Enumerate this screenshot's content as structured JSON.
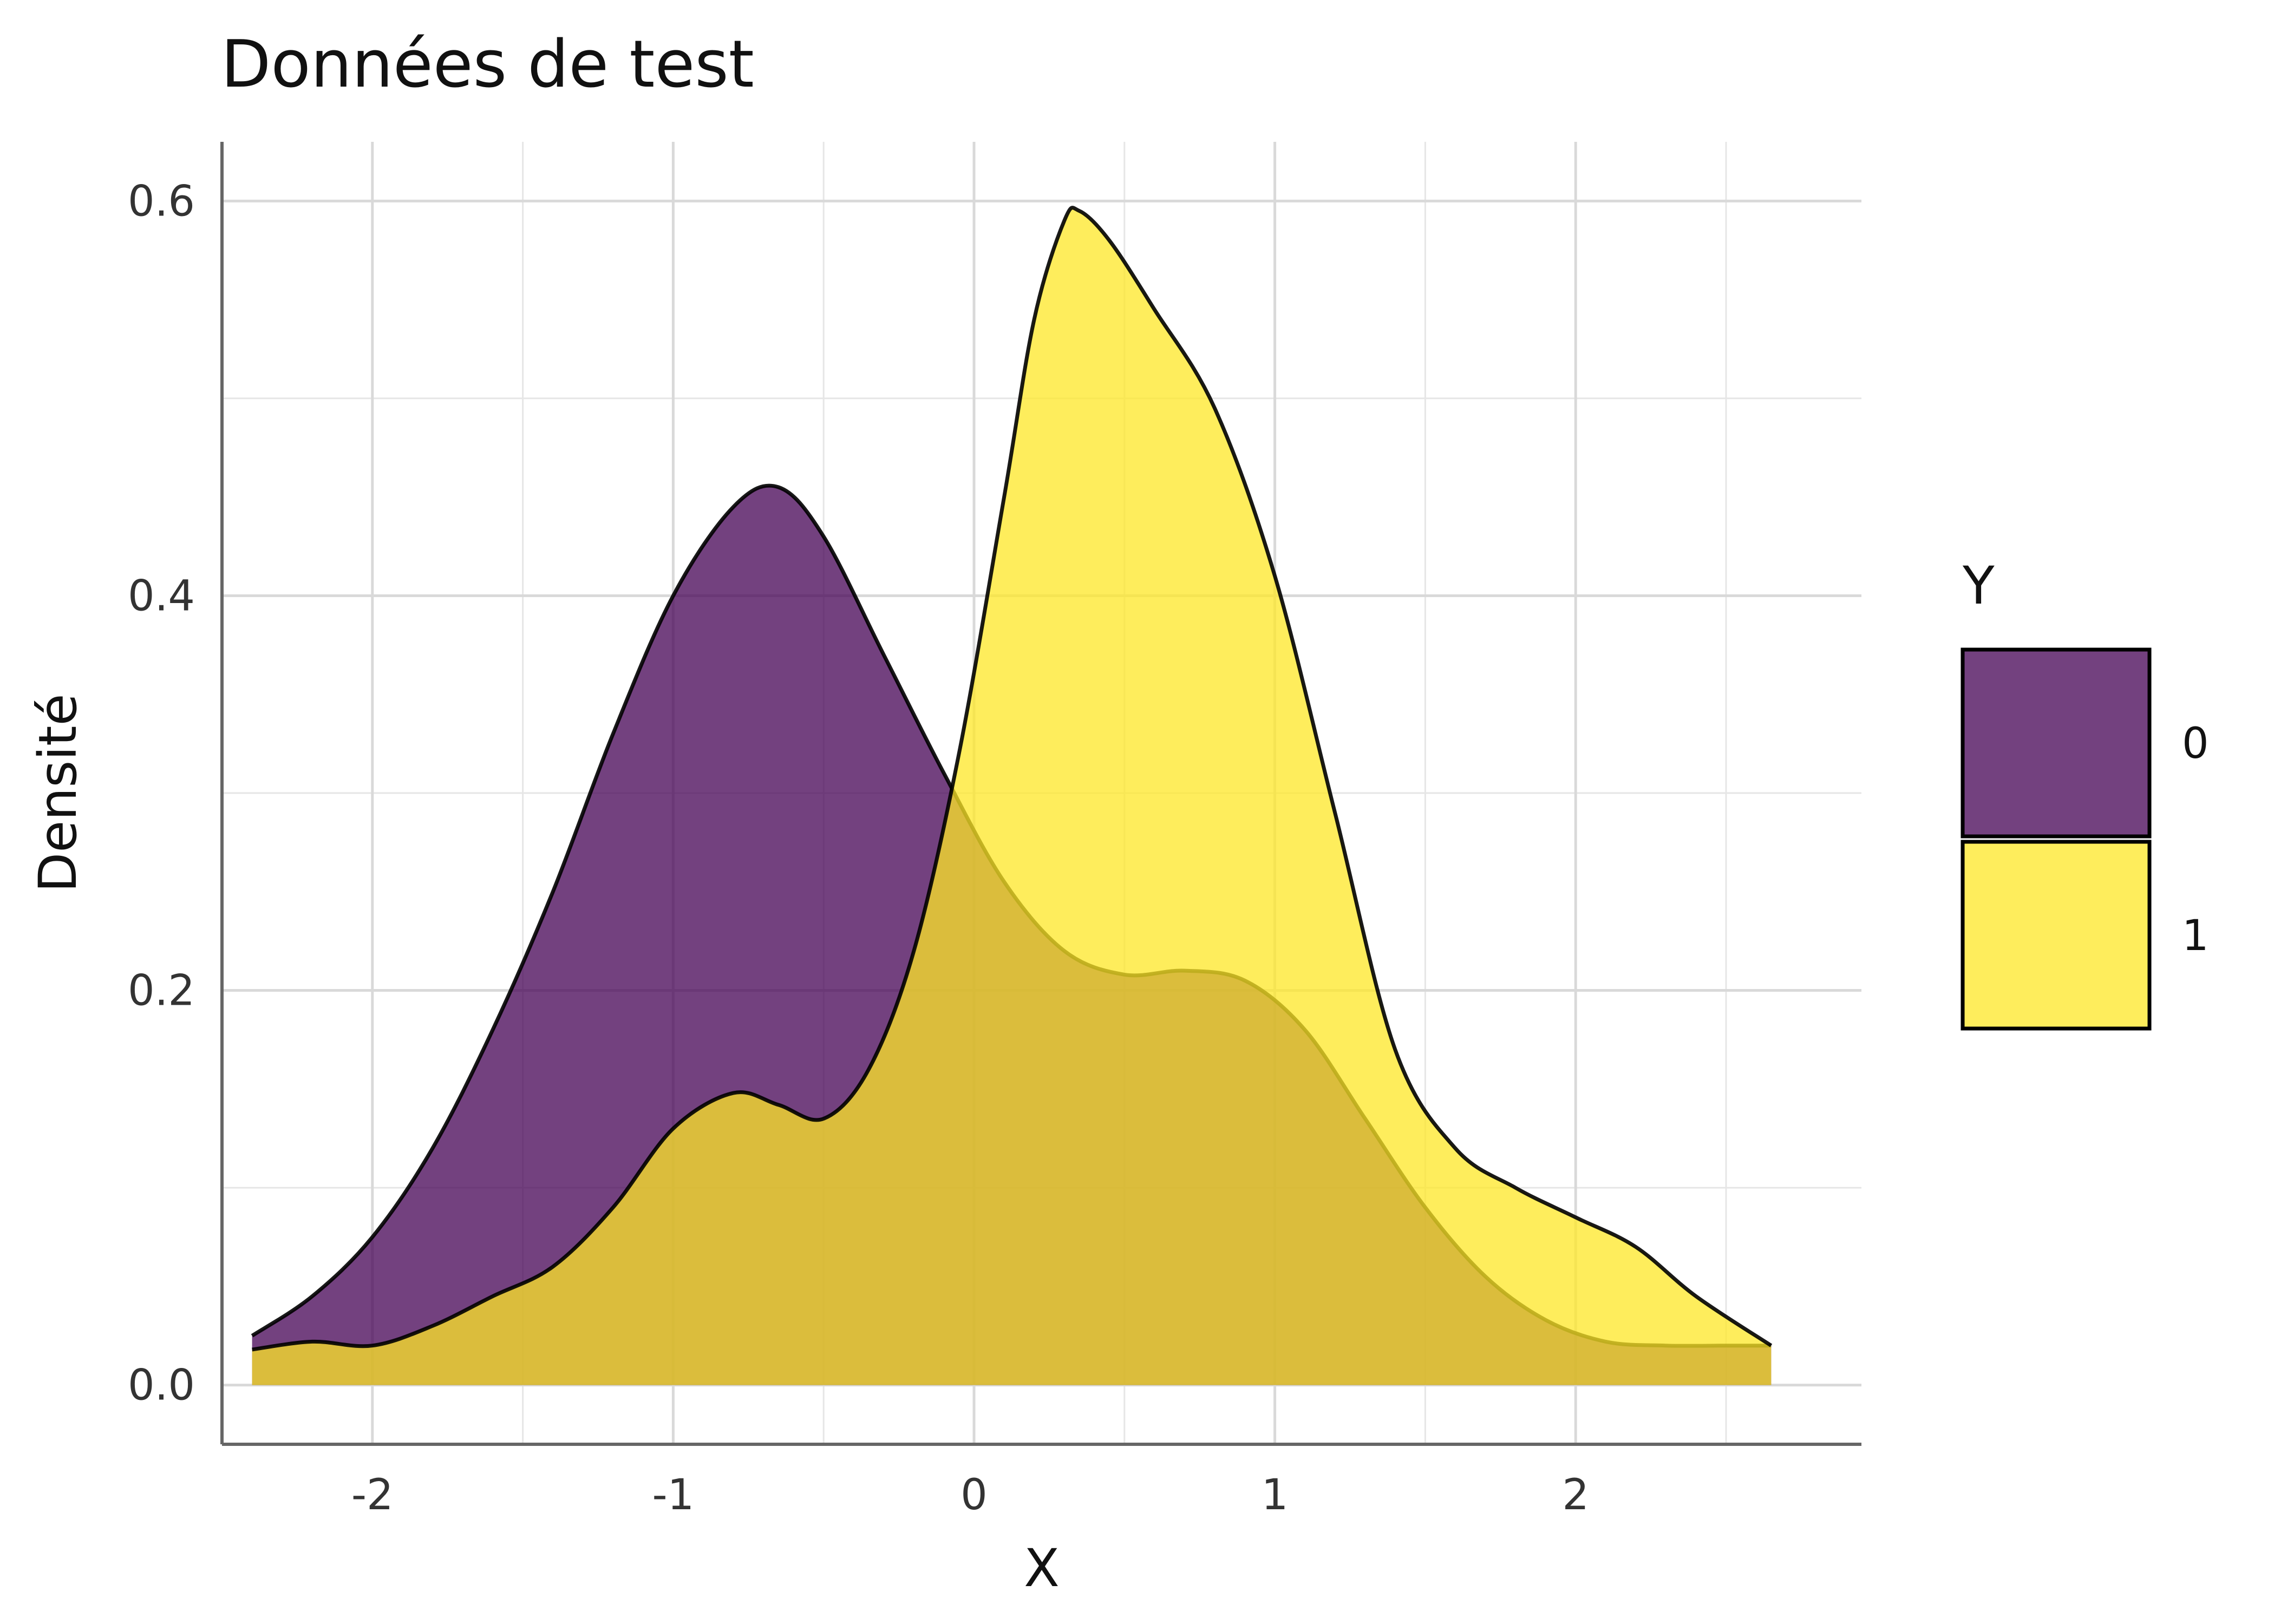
{
  "chart_data": {
    "type": "area",
    "subtype": "density",
    "title": "Données de test",
    "xlabel": "X",
    "ylabel": "Densité",
    "xlim": [
      -2.5,
      2.95
    ],
    "ylim": [
      -0.03,
      0.63
    ],
    "x_ticks": [
      -2,
      -1,
      0,
      1,
      2
    ],
    "x_tick_labels": [
      "-2",
      "-1",
      "0",
      "1",
      "2"
    ],
    "y_ticks": [
      0.0,
      0.2,
      0.4,
      0.6
    ],
    "y_tick_labels": [
      "0.0",
      "0.2",
      "0.4",
      "0.6"
    ],
    "grid": true,
    "legend": {
      "title": "Y",
      "position": "right"
    },
    "series": [
      {
        "name": "0",
        "color": "#440154",
        "opacity": 0.75,
        "x": [
          -2.4,
          -2.2,
          -2.0,
          -1.8,
          -1.6,
          -1.4,
          -1.2,
          -1.0,
          -0.8,
          -0.65,
          -0.5,
          -0.3,
          -0.1,
          0.1,
          0.3,
          0.5,
          0.7,
          0.9,
          1.1,
          1.3,
          1.5,
          1.7,
          1.9,
          2.1,
          2.3,
          2.5,
          2.65
        ],
        "y": [
          0.025,
          0.045,
          0.075,
          0.12,
          0.18,
          0.25,
          0.33,
          0.4,
          0.445,
          0.455,
          0.43,
          0.37,
          0.31,
          0.255,
          0.22,
          0.208,
          0.21,
          0.205,
          0.18,
          0.135,
          0.09,
          0.055,
          0.033,
          0.022,
          0.02,
          0.02,
          0.02
        ]
      },
      {
        "name": "1",
        "color": "#FDE725",
        "opacity": 0.75,
        "x": [
          -2.4,
          -2.2,
          -2.0,
          -1.8,
          -1.6,
          -1.4,
          -1.2,
          -1.0,
          -0.8,
          -0.65,
          -0.5,
          -0.35,
          -0.2,
          -0.05,
          0.1,
          0.2,
          0.3,
          0.35,
          0.45,
          0.6,
          0.8,
          1.0,
          1.2,
          1.4,
          1.6,
          1.8,
          2.0,
          2.2,
          2.4,
          2.65
        ],
        "y": [
          0.018,
          0.022,
          0.02,
          0.03,
          0.045,
          0.06,
          0.09,
          0.13,
          0.148,
          0.142,
          0.135,
          0.16,
          0.22,
          0.32,
          0.45,
          0.54,
          0.59,
          0.595,
          0.58,
          0.545,
          0.495,
          0.41,
          0.29,
          0.17,
          0.12,
          0.1,
          0.085,
          0.07,
          0.045,
          0.02
        ]
      }
    ]
  }
}
